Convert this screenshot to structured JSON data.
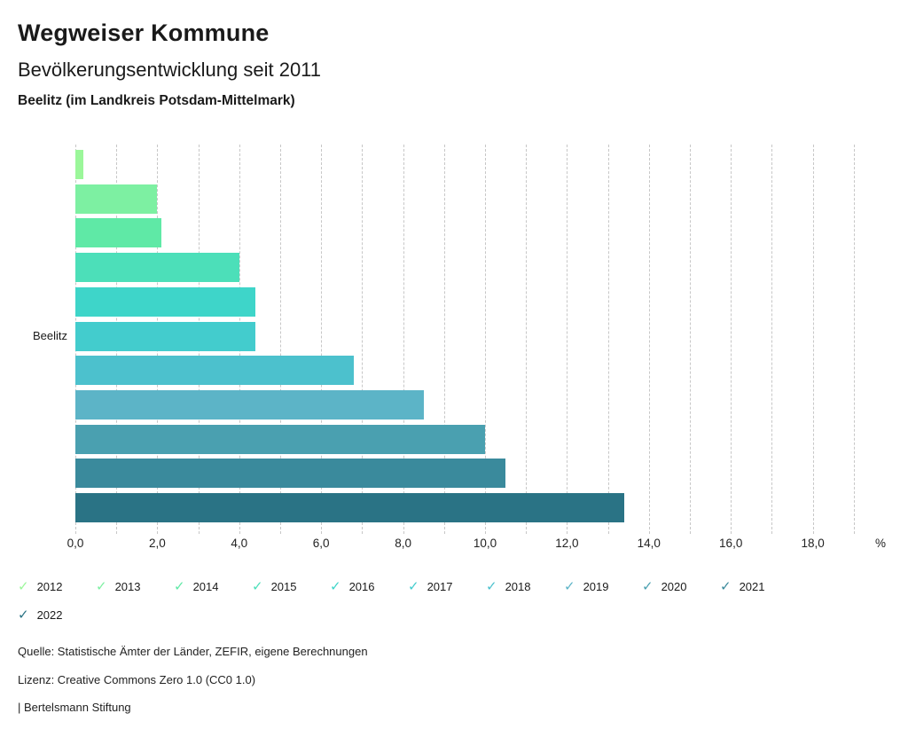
{
  "header": {
    "title": "Wegweiser Kommune",
    "subtitle": "Bevölkerungsentwicklung seit 2011",
    "region": "Beelitz (im Landkreis Potsdam-Mittelmark)"
  },
  "chart_data": {
    "type": "bar",
    "orientation": "horizontal",
    "title": "Bevölkerungsentwicklung seit 2011",
    "y_category": "Beelitz",
    "unit_label": "%",
    "xlim": [
      0,
      19
    ],
    "grid": "dashed-vertical",
    "legend_position": "bottom",
    "check_glyph": "✓",
    "x_ticks": [
      {
        "label": "0,0",
        "value": 0
      },
      {
        "label": "2,0",
        "value": 2
      },
      {
        "label": "4,0",
        "value": 4
      },
      {
        "label": "6,0",
        "value": 6
      },
      {
        "label": "8,0",
        "value": 8
      },
      {
        "label": "10,0",
        "value": 10
      },
      {
        "label": "12,0",
        "value": 12
      },
      {
        "label": "14,0",
        "value": 14
      },
      {
        "label": "16,0",
        "value": 16
      },
      {
        "label": "18,0",
        "value": 18
      }
    ],
    "series": [
      {
        "name": "2012",
        "value": 0.2,
        "color": "#9bf79a"
      },
      {
        "name": "2013",
        "value": 2.0,
        "color": "#7df0a2"
      },
      {
        "name": "2014",
        "value": 2.1,
        "color": "#5fe9a6"
      },
      {
        "name": "2015",
        "value": 4.0,
        "color": "#4cdfb9"
      },
      {
        "name": "2016",
        "value": 4.4,
        "color": "#3ed5c9"
      },
      {
        "name": "2017",
        "value": 4.4,
        "color": "#43cccd"
      },
      {
        "name": "2018",
        "value": 6.8,
        "color": "#4cc1cd"
      },
      {
        "name": "2019",
        "value": 8.5,
        "color": "#5cb4c7"
      },
      {
        "name": "2020",
        "value": 10.0,
        "color": "#4aa0b0"
      },
      {
        "name": "2021",
        "value": 10.5,
        "color": "#3a8a9c"
      },
      {
        "name": "2022",
        "value": 13.4,
        "color": "#2a7385"
      }
    ]
  },
  "footer": {
    "source": "Quelle: Statistische Ämter der Länder, ZEFIR, eigene Berechnungen",
    "license": "Lizenz: Creative Commons Zero 1.0 (CC0 1.0)",
    "attribution": "| Bertelsmann Stiftung"
  }
}
